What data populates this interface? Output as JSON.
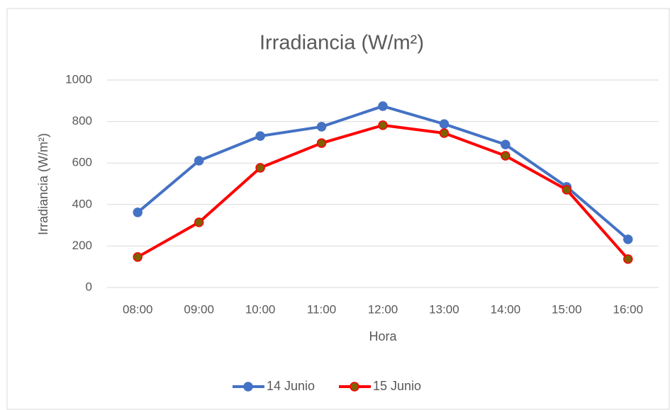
{
  "chart_data": {
    "type": "line",
    "title": "Irradiancia  (W/m²)",
    "x_label": "Hora",
    "y_label": "Irradiancia (W/m²)",
    "categories": [
      "08:00",
      "09:00",
      "10:00",
      "11:00",
      "12:00",
      "13:00",
      "14:00",
      "15:00",
      "16:00"
    ],
    "series": [
      {
        "name": "14 Junio",
        "color": "#4472c4",
        "marker_color": "#4472c4",
        "values": [
          362,
          611,
          730,
          775,
          874,
          788,
          689,
          485,
          232
        ]
      },
      {
        "name": "15 Junio",
        "color": "#ff0000",
        "marker_color": "#806000",
        "values": [
          147,
          314,
          577,
          696,
          782,
          744,
          635,
          471,
          137
        ]
      }
    ],
    "ylim": [
      0,
      1000
    ],
    "yticks": [
      0,
      200,
      400,
      600,
      800,
      1000
    ],
    "grid": true,
    "legend": "bottom"
  }
}
